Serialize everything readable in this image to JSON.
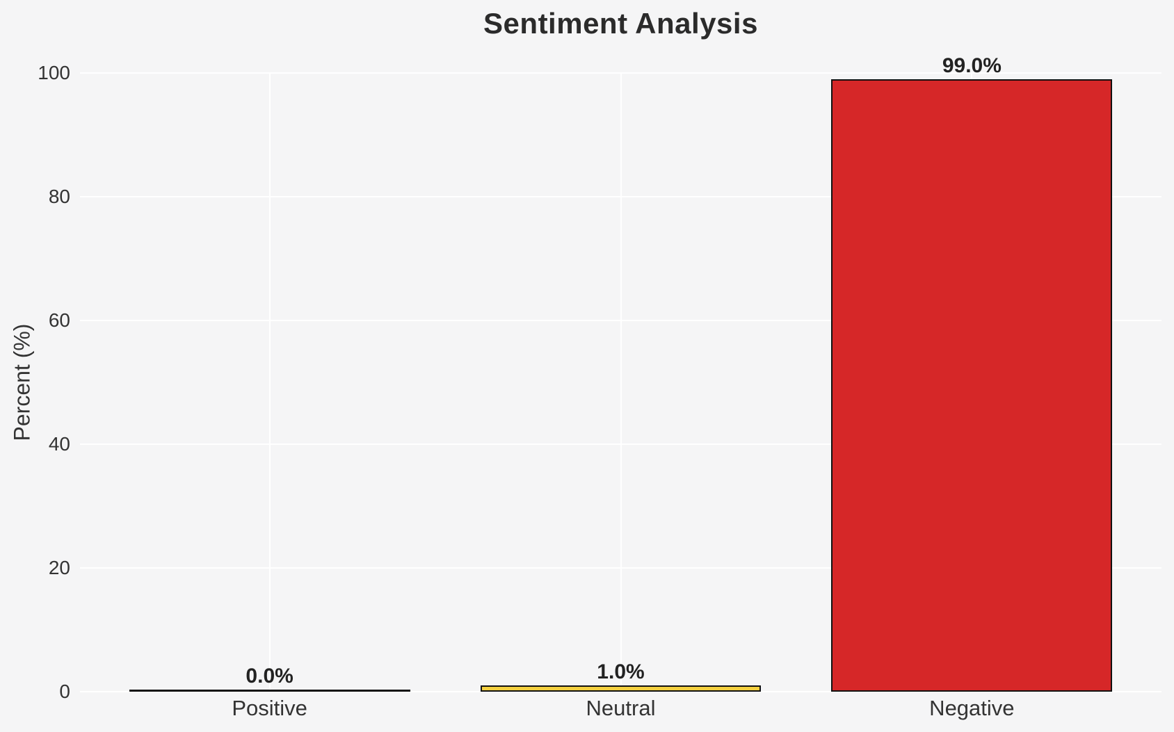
{
  "figure": {
    "background_color": "#f5f5f6",
    "grid_color": "#ffffff",
    "bar_edge_color": "#111111",
    "text_color": "#2b2b2b"
  },
  "chart_data": {
    "type": "bar",
    "title": "Sentiment Analysis",
    "xlabel": "",
    "ylabel": "Percent (%)",
    "categories": [
      "Positive",
      "Neutral",
      "Negative"
    ],
    "values": [
      0.0,
      1.0,
      99.0
    ],
    "bar_value_labels": [
      "0.0%",
      "1.0%",
      "99.0%"
    ],
    "bar_fill_colors": [
      null,
      "#f4d03f",
      "#d62728"
    ],
    "ylim": [
      0,
      100
    ],
    "yticks": [
      0,
      20,
      40,
      60,
      80,
      100
    ],
    "ytick_labels": [
      "0",
      "20",
      "40",
      "60",
      "80",
      "100"
    ],
    "grid": "on",
    "legend": "none"
  }
}
